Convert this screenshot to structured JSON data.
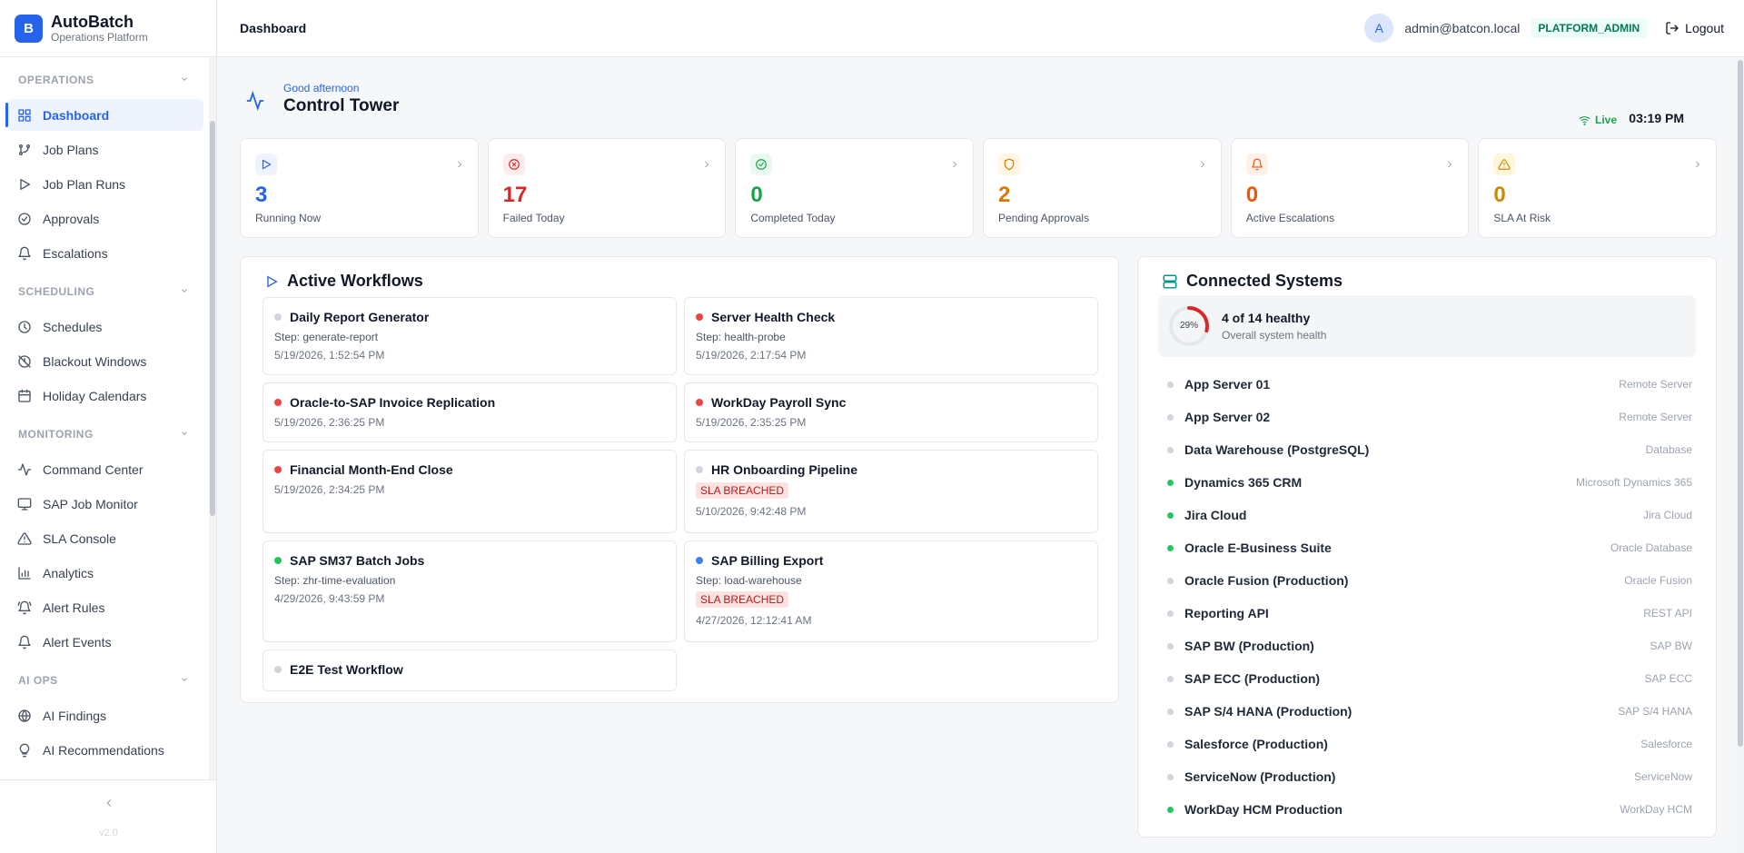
{
  "brand": {
    "logo_letter": "B",
    "name": "AutoBatch",
    "subtitle": "Operations Platform"
  },
  "sidebar": {
    "sections": [
      {
        "title": "OPERATIONS",
        "items": [
          {
            "label": "Dashboard",
            "icon": "grid-icon",
            "active": true
          },
          {
            "label": "Job Plans",
            "icon": "git-branch-icon"
          },
          {
            "label": "Job Plan Runs",
            "icon": "play-icon"
          },
          {
            "label": "Approvals",
            "icon": "check-circle-icon"
          },
          {
            "label": "Escalations",
            "icon": "bell-icon"
          }
        ]
      },
      {
        "title": "SCHEDULING",
        "items": [
          {
            "label": "Schedules",
            "icon": "clock-icon"
          },
          {
            "label": "Blackout Windows",
            "icon": "clock-off-icon"
          },
          {
            "label": "Holiday Calendars",
            "icon": "calendar-icon"
          }
        ]
      },
      {
        "title": "MONITORING",
        "items": [
          {
            "label": "Command Center",
            "icon": "activity-icon"
          },
          {
            "label": "SAP Job Monitor",
            "icon": "monitor-icon"
          },
          {
            "label": "SLA Console",
            "icon": "alert-triangle-icon"
          },
          {
            "label": "Analytics",
            "icon": "bar-chart-icon"
          },
          {
            "label": "Alert Rules",
            "icon": "bell-ring-icon"
          },
          {
            "label": "Alert Events",
            "icon": "bell-icon"
          }
        ]
      },
      {
        "title": "AI OPS",
        "items": [
          {
            "label": "AI Findings",
            "icon": "globe-icon"
          },
          {
            "label": "AI Recommendations",
            "icon": "lightbulb-icon"
          }
        ]
      }
    ],
    "version": "v2.0"
  },
  "topbar": {
    "breadcrumb": "Dashboard",
    "avatar_letter": "A",
    "email": "admin@batcon.local",
    "role": "PLATFORM_ADMIN",
    "logout": "Logout"
  },
  "hero": {
    "greeting": "Good afternoon",
    "title": "Control Tower",
    "live": "Live",
    "time": "03:19 PM"
  },
  "stats": [
    {
      "value": "3",
      "label": "Running Now",
      "color": "#2563eb",
      "bg": "#eef3fe",
      "icon": "play-icon"
    },
    {
      "value": "17",
      "label": "Failed Today",
      "color": "#dc2626",
      "bg": "#fdecec",
      "icon": "x-circle-icon"
    },
    {
      "value": "0",
      "label": "Completed Today",
      "color": "#16a34a",
      "bg": "#eafaf0",
      "icon": "check-circle-icon"
    },
    {
      "value": "2",
      "label": "Pending Approvals",
      "color": "#d97706",
      "bg": "#fff6e6",
      "icon": "shield-icon"
    },
    {
      "value": "0",
      "label": "Active Escalations",
      "color": "#ea580c",
      "bg": "#fff1e8",
      "icon": "bell-icon"
    },
    {
      "value": "0",
      "label": "SLA At Risk",
      "color": "#ca8a04",
      "bg": "#fef7dd",
      "icon": "alert-triangle-icon"
    }
  ],
  "workflows": {
    "title": "Active Workflows",
    "items": [
      {
        "name": "Daily Report Generator",
        "status": "gray",
        "step": "Step: generate-report",
        "date": "5/19/2026, 1:52:54 PM",
        "sla": ""
      },
      {
        "name": "Server Health Check",
        "status": "red",
        "step": "Step: health-probe",
        "date": "5/19/2026, 2:17:54 PM",
        "sla": ""
      },
      {
        "name": "Oracle-to-SAP Invoice Replication",
        "status": "red",
        "step": "",
        "date": "5/19/2026, 2:36:25 PM",
        "sla": ""
      },
      {
        "name": "WorkDay Payroll Sync",
        "status": "red",
        "step": "",
        "date": "5/19/2026, 2:35:25 PM",
        "sla": ""
      },
      {
        "name": "Financial Month-End Close",
        "status": "red",
        "step": "",
        "date": "5/19/2026, 2:34:25 PM",
        "sla": ""
      },
      {
        "name": "HR Onboarding Pipeline",
        "status": "gray",
        "step": "",
        "date": "5/10/2026, 9:42:48 PM",
        "sla": "SLA BREACHED"
      },
      {
        "name": "SAP SM37 Batch Jobs",
        "status": "green",
        "step": "Step: zhr-time-evaluation",
        "date": "4/29/2026, 9:43:59 PM",
        "sla": ""
      },
      {
        "name": "SAP Billing Export",
        "status": "blue",
        "step": "Step: load-warehouse",
        "date": "4/27/2026, 12:12:41 AM",
        "sla": "SLA BREACHED"
      },
      {
        "name": "E2E Test Workflow",
        "status": "gray",
        "step": "",
        "date": "",
        "sla": ""
      }
    ]
  },
  "systems": {
    "title": "Connected Systems",
    "health_percent": 29,
    "health_label": "29%",
    "health_summary": "4 of 14 healthy",
    "health_sub": "Overall system health",
    "items": [
      {
        "name": "App Server 01",
        "type": "Remote Server",
        "healthy": false
      },
      {
        "name": "App Server 02",
        "type": "Remote Server",
        "healthy": false
      },
      {
        "name": "Data Warehouse (PostgreSQL)",
        "type": "Database",
        "healthy": false
      },
      {
        "name": "Dynamics 365 CRM",
        "type": "Microsoft Dynamics 365",
        "healthy": true
      },
      {
        "name": "Jira Cloud",
        "type": "Jira Cloud",
        "healthy": true
      },
      {
        "name": "Oracle E-Business Suite",
        "type": "Oracle Database",
        "healthy": true
      },
      {
        "name": "Oracle Fusion (Production)",
        "type": "Oracle Fusion",
        "healthy": false
      },
      {
        "name": "Reporting API",
        "type": "REST API",
        "healthy": false
      },
      {
        "name": "SAP BW (Production)",
        "type": "SAP BW",
        "healthy": false
      },
      {
        "name": "SAP ECC (Production)",
        "type": "SAP ECC",
        "healthy": false
      },
      {
        "name": "SAP S/4 HANA (Production)",
        "type": "SAP S/4 HANA",
        "healthy": false
      },
      {
        "name": "Salesforce (Production)",
        "type": "Salesforce",
        "healthy": false
      },
      {
        "name": "ServiceNow (Production)",
        "type": "ServiceNow",
        "healthy": false
      },
      {
        "name": "WorkDay HCM Production",
        "type": "WorkDay HCM",
        "healthy": true
      }
    ]
  },
  "colors": {
    "accent": "#2563eb",
    "red": "#ef4444",
    "green": "#22c55e",
    "gray": "#d1d5db",
    "blue": "#3b82f6"
  }
}
